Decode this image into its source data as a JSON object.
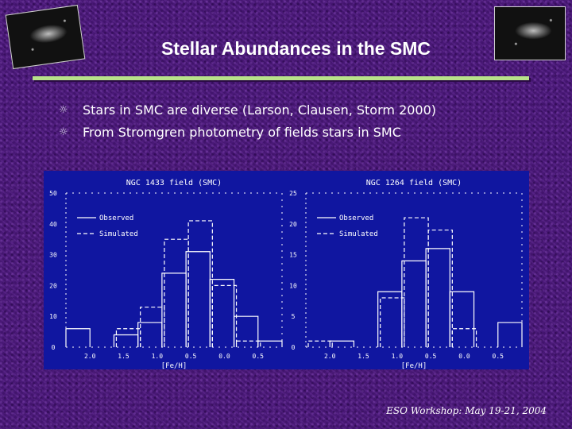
{
  "slide": {
    "title": "Stellar Abundances in the SMC",
    "bullets": [
      {
        "icon": "sun-bullet-icon",
        "text": "Stars in SMC are diverse (Larson, Clausen, Storm 2000)"
      },
      {
        "icon": "sun-bullet-icon",
        "text": "From Stromgren photometry of fields stars in SMC"
      }
    ],
    "footer": "ESO Workshop: May 19-21, 2004",
    "colors": {
      "background": "#4a1a78",
      "rule": "#b8e28a",
      "plot_bg": "#1016a0",
      "plot_fg": "#ffffff"
    }
  },
  "chart_data": [
    {
      "type": "bar",
      "title": "NGC 1433 field (SMC)",
      "xlabel": "[Fe/H]",
      "ylabel": "",
      "xticks": [
        "2.0",
        "1.5",
        "1.0",
        "0.5",
        "0.0",
        "0.5"
      ],
      "yticks": [
        "0",
        "10",
        "20",
        "30",
        "40",
        "50"
      ],
      "ylim": [
        0,
        50
      ],
      "legend": [
        "Observed",
        "Simulated"
      ],
      "series": [
        {
          "name": "Observed",
          "style": "solid",
          "bins": [
            [
              0,
              1,
              6
            ],
            [
              1,
              2,
              0
            ],
            [
              2,
              3,
              4
            ],
            [
              3,
              4,
              8
            ],
            [
              4,
              5,
              24
            ],
            [
              5,
              6,
              31
            ],
            [
              6,
              7,
              22
            ],
            [
              7,
              8,
              10
            ],
            [
              8,
              9,
              2
            ]
          ]
        },
        {
          "name": "Simulated",
          "style": "dashed",
          "bins": [
            [
              0,
              1,
              0
            ],
            [
              1,
              2,
              0
            ],
            [
              2,
              3,
              6
            ],
            [
              3,
              4,
              13
            ],
            [
              4,
              5,
              35
            ],
            [
              5,
              6,
              41
            ],
            [
              6,
              7,
              20
            ],
            [
              7,
              8,
              2
            ],
            [
              8,
              9,
              0
            ]
          ]
        }
      ]
    },
    {
      "type": "bar",
      "title": "NGC 1264 field (SMC)",
      "xlabel": "[Fe/H]",
      "ylabel": "",
      "xticks": [
        "2.0",
        "1.5",
        "1.0",
        "0.5",
        "0.0",
        "0.5"
      ],
      "yticks": [
        "0",
        "5",
        "10",
        "15",
        "20",
        "25"
      ],
      "ylim": [
        0,
        25
      ],
      "legend": [
        "Observed",
        "Simulated"
      ],
      "series": [
        {
          "name": "Observed",
          "style": "solid",
          "bins": [
            [
              1,
              2,
              1
            ],
            [
              2,
              3,
              0
            ],
            [
              3,
              4,
              9
            ],
            [
              4,
              5,
              14
            ],
            [
              5,
              6,
              16
            ],
            [
              6,
              7,
              9
            ],
            [
              7,
              8,
              0
            ],
            [
              8,
              9,
              4
            ]
          ]
        },
        {
          "name": "Simulated",
          "style": "dashed",
          "bins": [
            [
              0,
              1,
              1
            ],
            [
              1,
              2,
              0
            ],
            [
              3,
              4,
              8
            ],
            [
              4,
              5,
              21
            ],
            [
              5,
              6,
              19
            ],
            [
              6,
              7,
              3
            ],
            [
              7,
              8,
              0
            ]
          ]
        }
      ]
    }
  ]
}
